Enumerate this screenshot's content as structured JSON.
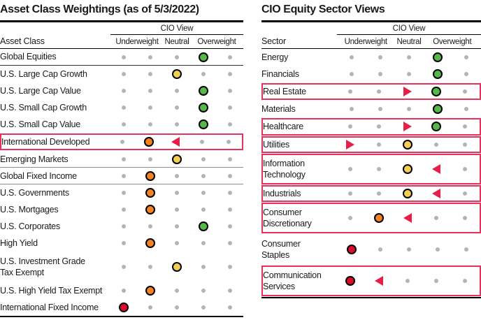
{
  "colors": {
    "ratings": {
      "green": "#54b948",
      "yellow": "#f2ce55",
      "orange": "#f58220",
      "red": "#dc0a2d"
    },
    "change_red": "#e71e48",
    "highlight_box": "#e8325e",
    "dot_gray": "#b4b4b6",
    "circle_border": "#000000"
  },
  "chart_data": [
    {
      "type": "table",
      "title": "Asset Class Weightings (as of 5/3/2022)",
      "cio_view_label": "CIO View",
      "row_header": "Asset Class",
      "columns": [
        "Underweight",
        "Neutral",
        "Overweight"
      ],
      "scale_note": "5 positions: strong underweight, underweight, neutral, overweight, strong overweight",
      "rows": [
        {
          "label": "Global Equities",
          "cells": [
            "",
            "",
            "",
            "green",
            ""
          ],
          "box": false,
          "sep": "dark"
        },
        {
          "label": "U.S. Large Cap Growth",
          "cells": [
            "",
            "",
            "yellow",
            "",
            ""
          ],
          "box": false,
          "sep": null
        },
        {
          "label": "U.S. Large Cap Value",
          "cells": [
            "",
            "",
            "",
            "green",
            ""
          ],
          "box": false,
          "sep": null
        },
        {
          "label": "U.S. Small Cap Growth",
          "cells": [
            "",
            "",
            "",
            "green",
            ""
          ],
          "box": false,
          "sep": null
        },
        {
          "label": "U.S. Small Cap Value",
          "cells": [
            "",
            "",
            "",
            "green",
            ""
          ],
          "box": false,
          "sep": null
        },
        {
          "label": "International Developed",
          "cells": [
            "",
            "orange",
            "triL",
            "",
            ""
          ],
          "box": true,
          "sep": null
        },
        {
          "label": "Emerging Markets",
          "cells": [
            "",
            "",
            "yellow",
            "",
            ""
          ],
          "box": false,
          "sep": "gray"
        },
        {
          "label": "Global Fixed Income",
          "cells": [
            "",
            "orange",
            "",
            "",
            ""
          ],
          "box": false,
          "sep": "gray"
        },
        {
          "label": "U.S. Governments",
          "cells": [
            "",
            "orange",
            "",
            "",
            ""
          ],
          "box": false,
          "sep": null
        },
        {
          "label": "U.S. Mortgages",
          "cells": [
            "",
            "orange",
            "",
            "",
            ""
          ],
          "box": false,
          "sep": null
        },
        {
          "label": "U.S. Corporates",
          "cells": [
            "",
            "",
            "",
            "green",
            ""
          ],
          "box": false,
          "sep": null
        },
        {
          "label": "High Yield",
          "cells": [
            "",
            "orange",
            "",
            "",
            ""
          ],
          "box": false,
          "sep": null
        },
        {
          "label": "U.S. Investment Grade\nTax Exempt",
          "cells": [
            "",
            "",
            "yellow",
            "",
            ""
          ],
          "box": false,
          "sep": null
        },
        {
          "label": "U.S. High Yield Tax Exempt",
          "cells": [
            "",
            "orange",
            "",
            "",
            ""
          ],
          "box": false,
          "sep": null
        },
        {
          "label": "International Fixed Income",
          "cells": [
            "red",
            "",
            "",
            "",
            ""
          ],
          "box": false,
          "sep": null
        }
      ]
    },
    {
      "type": "table",
      "title": "CIO Equity Sector Views",
      "cio_view_label": "CIO View",
      "row_header": "Sector",
      "columns": [
        "Underweight",
        "Neutral",
        "Overweight"
      ],
      "scale_note": "5 positions: strong underweight, underweight, neutral, overweight, strong overweight",
      "rows": [
        {
          "label": "Energy",
          "cells": [
            "",
            "",
            "",
            "green",
            ""
          ],
          "box": false,
          "sep": null
        },
        {
          "label": "Financials",
          "cells": [
            "",
            "",
            "",
            "green",
            ""
          ],
          "box": false,
          "sep": null
        },
        {
          "label": "Real Estate",
          "cells": [
            "",
            "",
            "triR",
            "green",
            ""
          ],
          "box": true,
          "sep": null
        },
        {
          "label": "Materials",
          "cells": [
            "",
            "",
            "",
            "green",
            ""
          ],
          "box": false,
          "sep": null
        },
        {
          "label": "Healthcare",
          "cells": [
            "",
            "",
            "triR",
            "green",
            ""
          ],
          "box": true,
          "sep": null
        },
        {
          "label": "Utilities",
          "cells": [
            "triR",
            "",
            "yellow",
            "",
            ""
          ],
          "box": true,
          "sep": null
        },
        {
          "label": "Information\nTechnology",
          "cells": [
            "",
            "",
            "yellow",
            "triL",
            ""
          ],
          "box": true,
          "sep": null
        },
        {
          "label": "Industrials",
          "cells": [
            "",
            "",
            "yellow",
            "triL",
            ""
          ],
          "box": true,
          "sep": null
        },
        {
          "label": "Consumer\nDiscretionary",
          "cells": [
            "",
            "orange",
            "triL",
            "",
            ""
          ],
          "box": true,
          "sep": null
        },
        {
          "label": "Consumer\nStaples",
          "cells": [
            "red",
            "",
            "",
            "",
            ""
          ],
          "box": false,
          "sep": null
        },
        {
          "label": "Communication\nServices",
          "cells": [
            "red",
            "triL",
            "",
            "",
            ""
          ],
          "box": true,
          "sep": null
        }
      ]
    }
  ]
}
